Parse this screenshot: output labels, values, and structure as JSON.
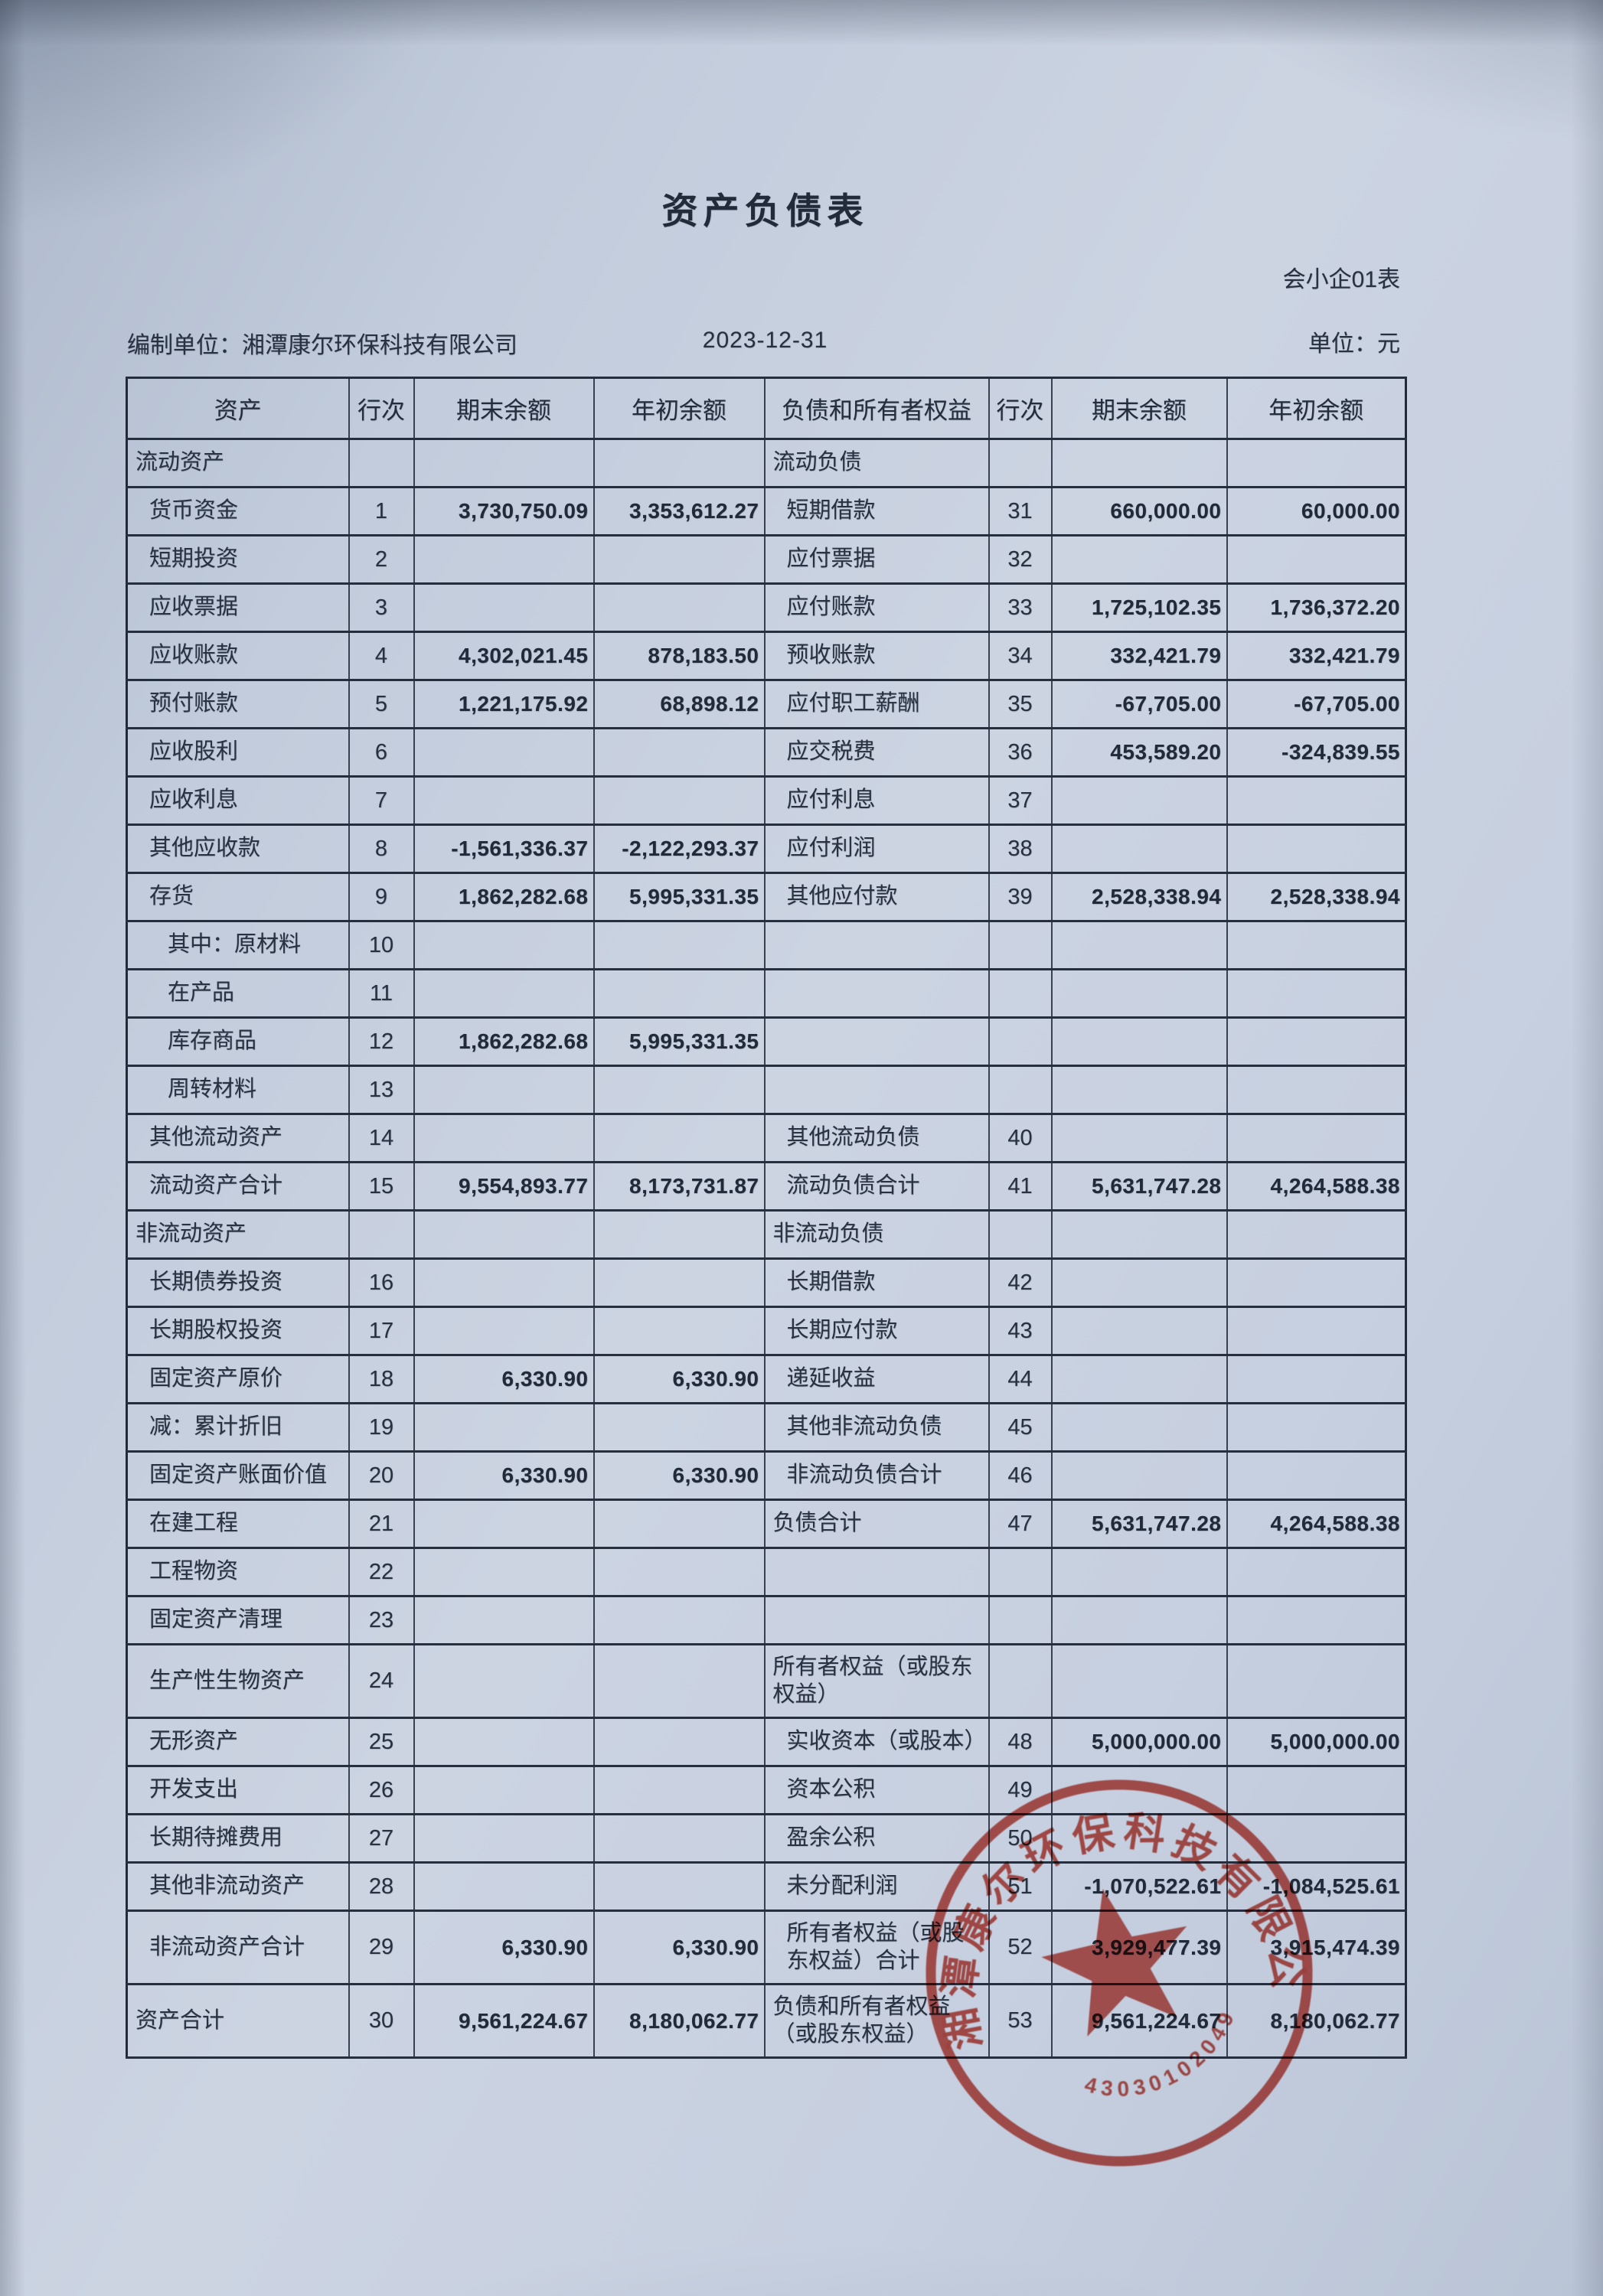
{
  "page": {
    "title": "资产负债表",
    "form_no": "会小企01表",
    "prepared_by": "编制单位：湘潭康尔环保科技有限公司",
    "date": "2023-12-31",
    "unit": "单位：元"
  },
  "table": {
    "headers": [
      "资产",
      "行次",
      "期末余额",
      "年初余额",
      "负债和所有者权益",
      "行次",
      "期末余额",
      "年初余额"
    ],
    "rows": [
      {
        "a": "流动资产",
        "at": "section",
        "l": "流动负债",
        "lt": "section"
      },
      {
        "a": "货币资金",
        "an": "1",
        "ae": "3,730,750.09",
        "ab": "3,353,612.27",
        "l": "短期借款",
        "ln": "31",
        "le": "660,000.00",
        "lb": "60,000.00"
      },
      {
        "a": "短期投资",
        "an": "2",
        "l": "应付票据",
        "ln": "32"
      },
      {
        "a": "应收票据",
        "an": "3",
        "l": "应付账款",
        "ln": "33",
        "le": "1,725,102.35",
        "lb": "1,736,372.20"
      },
      {
        "a": "应收账款",
        "an": "4",
        "ae": "4,302,021.45",
        "ab": "878,183.50",
        "l": "预收账款",
        "ln": "34",
        "le": "332,421.79",
        "lb": "332,421.79"
      },
      {
        "a": "预付账款",
        "an": "5",
        "ae": "1,221,175.92",
        "ab": "68,898.12",
        "l": "应付职工薪酬",
        "ln": "35",
        "le": "-67,705.00",
        "lb": "-67,705.00"
      },
      {
        "a": "应收股利",
        "an": "6",
        "l": "应交税费",
        "ln": "36",
        "le": "453,589.20",
        "lb": "-324,839.55"
      },
      {
        "a": "应收利息",
        "an": "7",
        "l": "应付利息",
        "ln": "37"
      },
      {
        "a": "其他应收款",
        "an": "8",
        "ae": "-1,561,336.37",
        "ab": "-2,122,293.37",
        "l": "应付利润",
        "ln": "38"
      },
      {
        "a": "存货",
        "an": "9",
        "ae": "1,862,282.68",
        "ab": "5,995,331.35",
        "l": "其他应付款",
        "ln": "39",
        "le": "2,528,338.94",
        "lb": "2,528,338.94"
      },
      {
        "a": "其中：原材料",
        "at": "sub",
        "an": "10"
      },
      {
        "a": "在产品",
        "at": "sub",
        "an": "11"
      },
      {
        "a": "库存商品",
        "at": "sub",
        "an": "12",
        "ae": "1,862,282.68",
        "ab": "5,995,331.35"
      },
      {
        "a": "周转材料",
        "at": "sub",
        "an": "13"
      },
      {
        "a": "其他流动资产",
        "an": "14",
        "l": "其他流动负债",
        "ln": "40"
      },
      {
        "a": "流动资产合计",
        "an": "15",
        "ae": "9,554,893.77",
        "ab": "8,173,731.87",
        "l": "流动负债合计",
        "ln": "41",
        "le": "5,631,747.28",
        "lb": "4,264,588.38"
      },
      {
        "a": "非流动资产",
        "at": "section",
        "l": "非流动负债",
        "lt": "section"
      },
      {
        "a": "长期债券投资",
        "an": "16",
        "l": "长期借款",
        "ln": "42"
      },
      {
        "a": "长期股权投资",
        "an": "17",
        "l": "长期应付款",
        "ln": "43"
      },
      {
        "a": "固定资产原价",
        "an": "18",
        "ae": "6,330.90",
        "ab": "6,330.90",
        "l": "递延收益",
        "ln": "44"
      },
      {
        "a": "减：累计折旧",
        "an": "19",
        "l": "其他非流动负债",
        "ln": "45"
      },
      {
        "a": "固定资产账面价值",
        "an": "20",
        "ae": "6,330.90",
        "ab": "6,330.90",
        "l": "非流动负债合计",
        "ln": "46"
      },
      {
        "a": "在建工程",
        "an": "21",
        "l": "负债合计",
        "lt": "total",
        "ln": "47",
        "le": "5,631,747.28",
        "lb": "4,264,588.38"
      },
      {
        "a": "工程物资",
        "an": "22"
      },
      {
        "a": "固定资产清理",
        "an": "23"
      },
      {
        "a": "生产性生物资产",
        "an": "24",
        "l": "所有者权益（或股东权益）",
        "lt": "section",
        "h": "tall"
      },
      {
        "a": "无形资产",
        "an": "25",
        "l": "实收资本（或股本）",
        "ln": "48",
        "le": "5,000,000.00",
        "lb": "5,000,000.00"
      },
      {
        "a": "开发支出",
        "an": "26",
        "l": "资本公积",
        "ln": "49"
      },
      {
        "a": "长期待摊费用",
        "an": "27",
        "l": "盈余公积",
        "ln": "50"
      },
      {
        "a": "其他非流动资产",
        "an": "28",
        "l": "未分配利润",
        "ln": "51",
        "le": "-1,070,522.61",
        "lb": "-1,084,525.61"
      },
      {
        "a": "非流动资产合计",
        "an": "29",
        "ae": "6,330.90",
        "ab": "6,330.90",
        "l": "所有者权益（或股东权益）合计",
        "ln": "52",
        "le": "3,929,477.39",
        "lb": "3,915,474.39",
        "h": "tall"
      },
      {
        "a": "资产合计",
        "at": "total",
        "an": "30",
        "ae": "9,561,224.67",
        "ab": "8,180,062.77",
        "l": "负债和所有者权益（或股东权益）",
        "lt": "total",
        "ln": "53",
        "le": "9,561,224.67",
        "lb": "8,180,062.77",
        "h": "tall"
      }
    ]
  },
  "stamp": {
    "company": "湘潭康尔环保科技有限公司",
    "number": "4303010204976",
    "color": "#c13a30"
  },
  "colors": {
    "paper": "#c6cfdf",
    "ink": "#273140",
    "line": "#1d2632",
    "stamp_red": "#c13a30"
  }
}
